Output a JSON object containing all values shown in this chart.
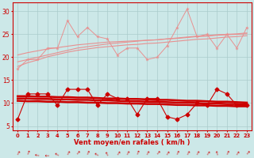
{
  "bg_color": "#cce8e8",
  "grid_color": "#aacccc",
  "x": [
    0,
    1,
    2,
    3,
    4,
    5,
    6,
    7,
    8,
    9,
    10,
    11,
    12,
    13,
    14,
    15,
    16,
    17,
    18,
    19,
    20,
    21,
    22,
    23
  ],
  "upper_zigzag": [
    17.5,
    19.5,
    19.5,
    22.0,
    22.0,
    28.0,
    24.5,
    26.5,
    24.5,
    24.0,
    20.5,
    22.0,
    22.0,
    19.5,
    20.0,
    22.5,
    26.5,
    30.5,
    24.5,
    25.0,
    22.0,
    25.0,
    22.0,
    26.5
  ],
  "upper_t1": [
    19.0,
    19.5,
    20.0,
    20.5,
    21.0,
    21.5,
    22.0,
    22.3,
    22.6,
    22.9,
    23.1,
    23.3,
    23.5,
    23.7,
    23.8,
    24.0,
    24.2,
    24.4,
    24.6,
    24.7,
    24.9,
    25.0,
    25.1,
    25.3
  ],
  "upper_t2": [
    20.5,
    21.0,
    21.4,
    21.8,
    22.1,
    22.4,
    22.7,
    22.9,
    23.1,
    23.3,
    23.4,
    23.5,
    23.6,
    23.7,
    23.8,
    24.0,
    24.1,
    24.3,
    24.5,
    24.6,
    24.8,
    24.9,
    25.0,
    25.1
  ],
  "upper_t3": [
    18.0,
    18.8,
    19.4,
    20.1,
    20.6,
    21.1,
    21.5,
    21.8,
    22.1,
    22.3,
    22.5,
    22.7,
    22.8,
    23.0,
    23.1,
    23.3,
    23.5,
    23.7,
    23.9,
    24.0,
    24.2,
    24.4,
    24.5,
    24.7
  ],
  "lower_zigzag": [
    6.5,
    12.0,
    12.0,
    12.0,
    9.5,
    13.0,
    13.0,
    13.0,
    9.5,
    12.0,
    11.0,
    11.0,
    7.5,
    11.0,
    11.0,
    7.0,
    6.5,
    7.5,
    10.0,
    9.5,
    13.0,
    12.0,
    9.5,
    9.5
  ],
  "lower_t1": [
    11.5,
    11.5,
    11.4,
    11.4,
    11.3,
    11.3,
    11.2,
    11.2,
    11.1,
    11.0,
    11.0,
    10.9,
    10.9,
    10.8,
    10.7,
    10.7,
    10.6,
    10.5,
    10.5,
    10.4,
    10.3,
    10.3,
    10.2,
    10.1
  ],
  "lower_t2": [
    11.0,
    11.0,
    10.9,
    10.9,
    10.8,
    10.8,
    10.7,
    10.7,
    10.6,
    10.6,
    10.5,
    10.4,
    10.4,
    10.3,
    10.3,
    10.2,
    10.1,
    10.1,
    10.0,
    9.9,
    9.9,
    9.8,
    9.8,
    9.7
  ],
  "lower_t3": [
    10.5,
    10.4,
    10.4,
    10.3,
    10.3,
    10.2,
    10.2,
    10.1,
    10.1,
    10.0,
    10.0,
    9.9,
    9.9,
    9.8,
    9.8,
    9.7,
    9.6,
    9.6,
    9.5,
    9.5,
    9.4,
    9.4,
    9.3,
    9.3
  ],
  "upper_color": "#e89090",
  "lower_color": "#cc0000",
  "xlabel": "Vent moyen/en rafales ( km/h )",
  "ylim": [
    4,
    32
  ],
  "yticks": [
    5,
    10,
    15,
    20,
    25,
    30
  ],
  "xticks": [
    0,
    1,
    2,
    3,
    4,
    5,
    6,
    7,
    8,
    9,
    10,
    11,
    12,
    13,
    14,
    15,
    16,
    17,
    18,
    19,
    20,
    21,
    22,
    23
  ],
  "arrow_angles": [
    -30,
    -20,
    80,
    90,
    60,
    -30,
    -40,
    -25,
    60,
    30,
    -35,
    -30,
    -20,
    -30,
    -40,
    -35,
    -25,
    -30,
    -30,
    -35,
    20,
    -25,
    -35,
    -40
  ]
}
